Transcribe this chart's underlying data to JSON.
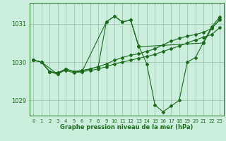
{
  "background_color": "#cceedd",
  "grid_color": "#99bbaa",
  "line_color": "#1a6b1a",
  "xlabel": "Graphe pression niveau de la mer (hPa)",
  "xlim": [
    -0.5,
    23.5
  ],
  "ylim": [
    1028.6,
    1031.55
  ],
  "yticks": [
    1029,
    1030,
    1031
  ],
  "xticks": [
    0,
    1,
    2,
    3,
    4,
    5,
    6,
    7,
    8,
    9,
    10,
    11,
    12,
    13,
    14,
    15,
    16,
    17,
    18,
    19,
    20,
    21,
    22,
    23
  ],
  "series": [
    {
      "x": [
        0,
        1,
        2,
        3,
        4,
        5,
        6,
        7,
        8,
        9,
        10,
        11,
        12,
        13,
        14,
        15,
        16,
        17,
        18,
        19,
        20,
        21,
        22,
        23
      ],
      "y": [
        1030.05,
        1030.0,
        1029.75,
        1029.72,
        1029.78,
        1029.72,
        1029.75,
        1029.78,
        1029.82,
        1029.88,
        1029.95,
        1030.0,
        1030.05,
        1030.1,
        1030.15,
        1030.2,
        1030.28,
        1030.35,
        1030.42,
        1030.5,
        1030.58,
        1030.65,
        1030.72,
        1030.9
      ]
    },
    {
      "x": [
        0,
        1,
        2,
        3,
        4,
        5,
        6,
        7,
        8,
        9,
        10,
        11,
        12,
        13,
        14,
        15,
        16,
        17,
        18,
        19,
        20,
        21,
        22,
        23
      ],
      "y": [
        1030.05,
        1030.0,
        1029.75,
        1029.72,
        1029.82,
        1029.75,
        1029.78,
        1029.82,
        1029.88,
        1029.95,
        1030.05,
        1030.12,
        1030.18,
        1030.22,
        1030.28,
        1030.35,
        1030.45,
        1030.55,
        1030.62,
        1030.68,
        1030.72,
        1030.78,
        1030.88,
        1031.1
      ]
    },
    {
      "x": [
        0,
        1,
        3,
        4,
        5,
        6,
        9,
        10,
        11,
        12,
        13,
        21,
        22,
        23
      ],
      "y": [
        1030.05,
        1030.0,
        1029.68,
        1029.82,
        1029.75,
        1029.75,
        1031.05,
        1031.2,
        1031.05,
        1031.1,
        1030.4,
        1030.5,
        1030.88,
        1031.12
      ]
    },
    {
      "x": [
        0,
        1,
        2,
        3,
        4,
        5,
        6,
        7,
        8,
        9,
        10,
        11,
        12,
        13,
        14,
        15,
        16,
        17,
        18,
        19,
        20,
        21,
        22,
        23
      ],
      "y": [
        1030.05,
        1030.0,
        1029.75,
        1029.68,
        1029.82,
        1029.75,
        1029.78,
        1029.82,
        1029.88,
        1031.05,
        1031.2,
        1031.05,
        1031.1,
        1030.42,
        1029.95,
        1028.88,
        1028.7,
        1028.85,
        1029.0,
        1030.0,
        1030.12,
        1030.52,
        1030.92,
        1031.18
      ]
    }
  ]
}
